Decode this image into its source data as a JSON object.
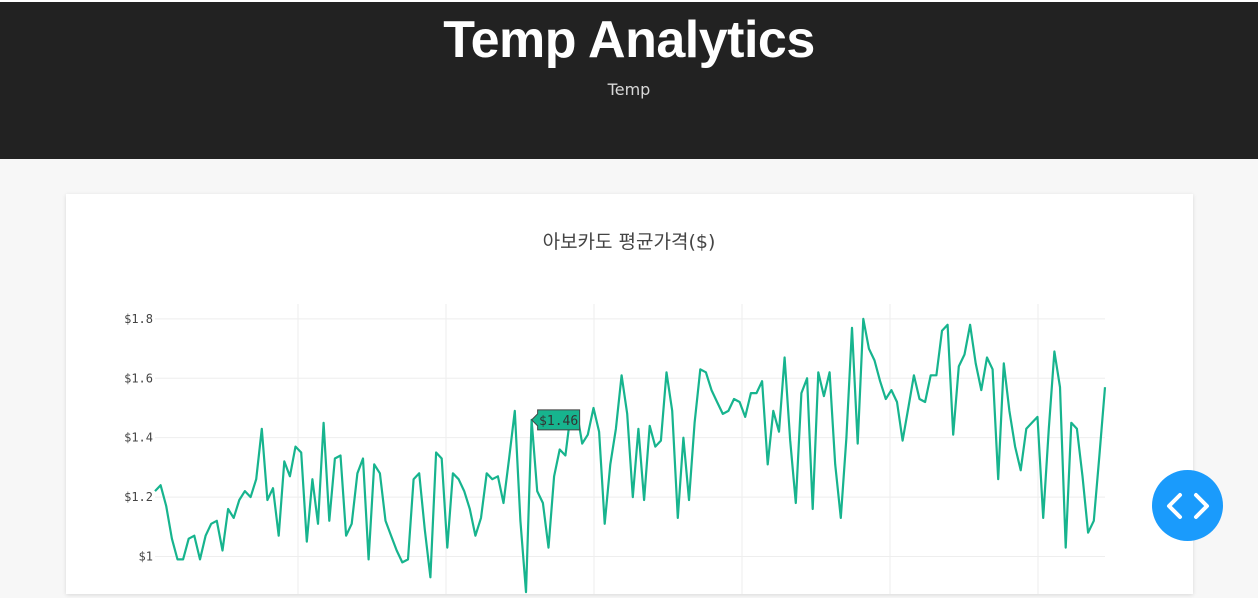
{
  "header": {
    "title": "Temp Analytics",
    "subtitle": "Temp"
  },
  "fab": {
    "icon": "code-icon"
  },
  "colors": {
    "header_bg": "#222222",
    "page_bg": "#f7f7f7",
    "line": "#17b48e",
    "fab": "#1a9bfc"
  },
  "chart_data": {
    "type": "line",
    "title": "아보카도 평균가격($)",
    "y_ticks": [
      "$1",
      "$1.2",
      "$1.4",
      "$1.6",
      "$1.8"
    ],
    "ylim": [
      0.84,
      1.85
    ],
    "grid": true,
    "tooltip": {
      "label": "$1.46",
      "index": 67
    },
    "series": [
      {
        "values": [
          1.22,
          1.24,
          1.17,
          1.06,
          0.99,
          0.99,
          1.06,
          1.07,
          0.99,
          1.07,
          1.11,
          1.12,
          1.02,
          1.16,
          1.13,
          1.19,
          1.22,
          1.2,
          1.26,
          1.43,
          1.19,
          1.23,
          1.07,
          1.32,
          1.27,
          1.37,
          1.35,
          1.05,
          1.26,
          1.11,
          1.45,
          1.12,
          1.33,
          1.34,
          1.07,
          1.11,
          1.28,
          1.33,
          0.99,
          1.31,
          1.28,
          1.12,
          1.07,
          1.02,
          0.98,
          0.99,
          1.26,
          1.28,
          1.09,
          0.93,
          1.35,
          1.33,
          1.03,
          1.28,
          1.26,
          1.22,
          1.16,
          1.07,
          1.13,
          1.28,
          1.26,
          1.27,
          1.18,
          1.33,
          1.49,
          1.12,
          0.88,
          1.46,
          1.22,
          1.18,
          1.03,
          1.27,
          1.36,
          1.34,
          1.49,
          1.49,
          1.38,
          1.41,
          1.5,
          1.42,
          1.11,
          1.31,
          1.43,
          1.61,
          1.48,
          1.2,
          1.43,
          1.19,
          1.44,
          1.37,
          1.39,
          1.62,
          1.49,
          1.13,
          1.4,
          1.19,
          1.45,
          1.63,
          1.62,
          1.56,
          1.52,
          1.48,
          1.49,
          1.53,
          1.52,
          1.47,
          1.55,
          1.55,
          1.59,
          1.31,
          1.49,
          1.42,
          1.67,
          1.39,
          1.18,
          1.55,
          1.6,
          1.16,
          1.62,
          1.54,
          1.62,
          1.31,
          1.13,
          1.4,
          1.77,
          1.38,
          1.8,
          1.7,
          1.66,
          1.59,
          1.53,
          1.56,
          1.52,
          1.39,
          1.5,
          1.61,
          1.53,
          1.52,
          1.61,
          1.61,
          1.76,
          1.78,
          1.41,
          1.64,
          1.68,
          1.78,
          1.65,
          1.56,
          1.67,
          1.63,
          1.26,
          1.65,
          1.49,
          1.37,
          1.29,
          1.43,
          1.45,
          1.47,
          1.13,
          1.43,
          1.69,
          1.57,
          1.03,
          1.45,
          1.43,
          1.27,
          1.08,
          1.12,
          1.34,
          1.57
        ]
      }
    ]
  }
}
